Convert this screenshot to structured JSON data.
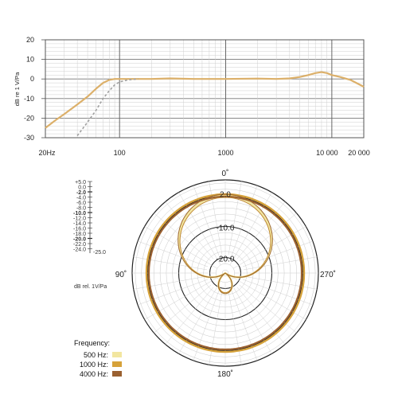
{
  "chart_data": [
    {
      "type": "line",
      "ylabel": "dB re 1 V/Pa",
      "x_scale": "log",
      "xlim": [
        20,
        20000
      ],
      "ylim": [
        -30,
        20
      ],
      "y_ticks": [
        "20",
        "10",
        "0",
        "-10",
        "-20",
        "-30"
      ],
      "x_ticks": [
        "20Hz",
        "100",
        "1000",
        "10 000",
        "20 000"
      ],
      "series": [
        {
          "style": "solid",
          "color": "#dcb06a",
          "x": [
            20,
            25,
            30,
            40,
            50,
            60,
            70,
            80,
            90,
            100,
            150,
            200,
            300,
            500,
            1000,
            2000,
            3000,
            4000,
            5000,
            6000,
            7000,
            8000,
            9000,
            10000,
            12000,
            15000,
            20000
          ],
          "y": [
            -25,
            -21,
            -18,
            -13,
            -9,
            -5,
            -2,
            -0.5,
            0,
            0,
            0,
            0,
            0.3,
            0,
            0,
            0.2,
            0,
            0.3,
            1,
            2,
            3,
            3.5,
            3,
            2,
            1,
            -0.5,
            -4
          ]
        },
        {
          "style": "dashed",
          "color": "#a0a0a0",
          "x": [
            40,
            50,
            60,
            70,
            80,
            90,
            100,
            120,
            150
          ],
          "y": [
            -29,
            -22,
            -16,
            -10,
            -6,
            -3,
            -1.5,
            -0.5,
            0
          ]
        }
      ]
    },
    {
      "type": "polar",
      "angle_labels": [
        "0˚",
        "90˚",
        "180˚",
        "270˚"
      ],
      "ring_labels": [
        "-10.0",
        "-20.0",
        "2.0"
      ],
      "scale_labels": [
        "+5.0",
        "0.0",
        "-2.0",
        "-4.0",
        "-6.0",
        "-8.0",
        "-10.0",
        "-12.0",
        "-14.0",
        "-16.0",
        "-18.0",
        "-20.0",
        "-22.0",
        "-24.0",
        "-25.0"
      ],
      "scale_unit": "dB rel. 1V/Pa",
      "legend_title": "Frequency:",
      "r_range_db": [
        -25,
        5
      ],
      "series": [
        {
          "name": "500 Hz:",
          "color": "#f2e6a0",
          "pattern": "cardioid",
          "shape": [
            0.0,
            0.0
          ]
        },
        {
          "name": "1000 Hz:",
          "color": "#d6a23a",
          "pattern": "omni",
          "shape": [
            0.9,
            0.0
          ]
        },
        {
          "name": "4000 Hz:",
          "color": "#9a6030",
          "pattern": "omni",
          "shape": [
            0.86,
            0.0
          ]
        }
      ]
    }
  ]
}
